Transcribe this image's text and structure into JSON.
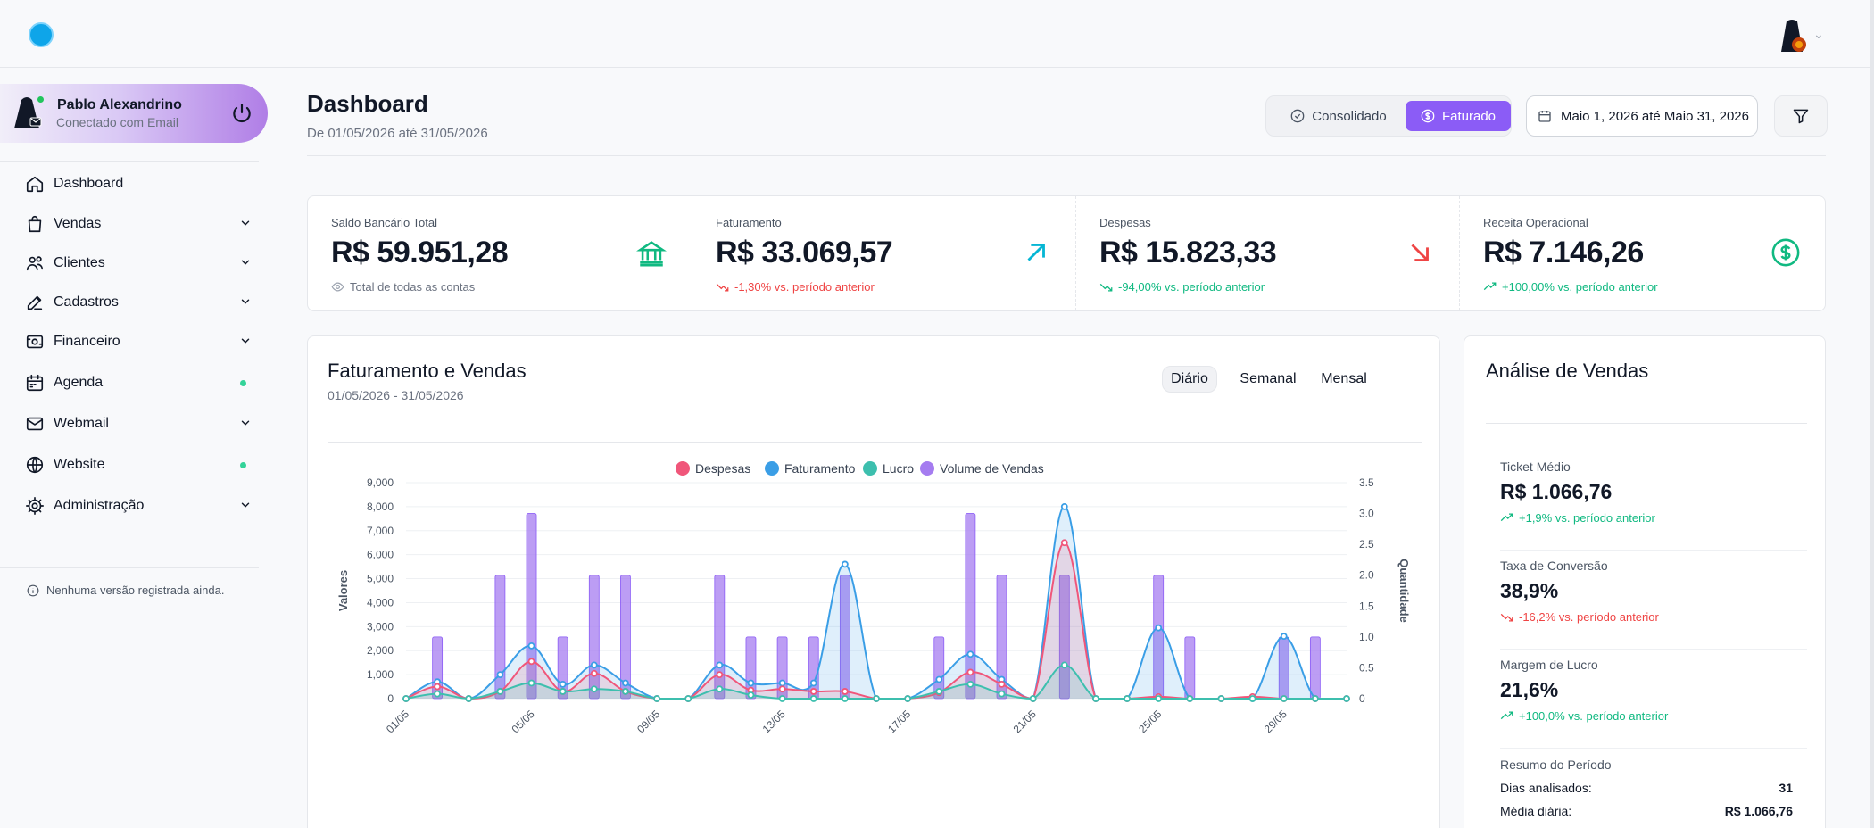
{
  "user": {
    "name": "Pablo Alexandrino",
    "status": "Conectado com Email"
  },
  "nav": [
    {
      "label": "Dashboard",
      "icon": "home-icon",
      "trail": "none"
    },
    {
      "label": "Vendas",
      "icon": "shopping-bag-icon",
      "trail": "chevron"
    },
    {
      "label": "Clientes",
      "icon": "users-icon",
      "trail": "chevron"
    },
    {
      "label": "Cadastros",
      "icon": "edit-icon",
      "trail": "chevron"
    },
    {
      "label": "Financeiro",
      "icon": "wallet-icon",
      "trail": "chevron"
    },
    {
      "label": "Agenda",
      "icon": "calendar-icon",
      "trail": "dot"
    },
    {
      "label": "Webmail",
      "icon": "mail-icon",
      "trail": "chevron"
    },
    {
      "label": "Website",
      "icon": "globe-icon",
      "trail": "dot"
    },
    {
      "label": "Administração",
      "icon": "settings-icon",
      "trail": "chevron"
    }
  ],
  "version_note": "Nenhuma versão registrada ainda.",
  "header": {
    "title": "Dashboard",
    "subtitle": "De 01/05/2026 até 31/05/2026",
    "toggle_consolidado": "Consolidado",
    "toggle_faturado": "Faturado",
    "date_range": "Maio 1, 2026 até Maio 31, 2026"
  },
  "kpis": [
    {
      "label": "Saldo Bancário Total",
      "value": "R$ 59.951,28",
      "note": "Total de todas as contas",
      "note_type": "neutral",
      "icon": "bank-icon",
      "icon_color": "#10b981"
    },
    {
      "label": "Faturamento",
      "value": "R$ 33.069,57",
      "note": "-1,30% vs. período anterior",
      "note_type": "down",
      "icon": "arrow-up-right-icon",
      "icon_color": "#06b6d4"
    },
    {
      "label": "Despesas",
      "value": "R$ 15.823,33",
      "note": "-94,00% vs. período anterior",
      "note_type": "up-good",
      "icon": "arrow-down-right-icon",
      "icon_color": "#ef4444"
    },
    {
      "label": "Receita Operacional",
      "value": "R$ 7.146,26",
      "note": "+100,00% vs. período anterior",
      "note_type": "up",
      "icon": "dollar-circle-icon",
      "icon_color": "#10b981"
    }
  ],
  "chart_card": {
    "title": "Faturamento e Vendas",
    "range": "01/05/2026 - 31/05/2026",
    "periods": [
      "Diário",
      "Semanal",
      "Mensal"
    ],
    "active_period": "Diário"
  },
  "chart_data": {
    "type": "line",
    "title": "",
    "ylabel": "Valores",
    "y2label": "Quantidade",
    "ylim": [
      0,
      9000
    ],
    "y2lim": [
      0,
      3.5
    ],
    "y_ticks": [
      "0",
      "1,000",
      "2,000",
      "3,000",
      "4,000",
      "5,000",
      "6,000",
      "7,000",
      "8,000",
      "9,000"
    ],
    "y2_ticks": [
      "0",
      "0.5",
      "1.0",
      "1.5",
      "2.0",
      "2.5",
      "3.0",
      "3.5"
    ],
    "x_ticks": [
      "01/05",
      "05/05",
      "09/05",
      "13/05",
      "17/05",
      "21/05",
      "25/05",
      "29/05"
    ],
    "legend_position": "top",
    "grid": true,
    "categories": [
      "01/05",
      "02/05",
      "03/05",
      "04/05",
      "05/05",
      "06/05",
      "07/05",
      "08/05",
      "09/05",
      "10/05",
      "11/05",
      "12/05",
      "13/05",
      "14/05",
      "15/05",
      "16/05",
      "17/05",
      "18/05",
      "19/05",
      "20/05",
      "21/05",
      "22/05",
      "23/05",
      "24/05",
      "25/05",
      "26/05",
      "27/05",
      "28/05",
      "29/05",
      "30/05",
      "31/05"
    ],
    "series": [
      {
        "name": "Despesas",
        "color": "#f0567a",
        "type": "area",
        "values": [
          0,
          500,
          0,
          300,
          1550,
          300,
          1050,
          300,
          0,
          0,
          1000,
          350,
          400,
          300,
          300,
          0,
          0,
          250,
          1100,
          600,
          0,
          6500,
          0,
          0,
          80,
          0,
          0,
          80,
          0,
          0,
          0
        ]
      },
      {
        "name": "Faturamento",
        "color": "#3a9ee6",
        "type": "area",
        "values": [
          0,
          700,
          0,
          1000,
          2200,
          600,
          1400,
          650,
          0,
          0,
          1400,
          650,
          650,
          650,
          5600,
          0,
          0,
          800,
          1850,
          800,
          0,
          8000,
          0,
          0,
          2950,
          0,
          0,
          0,
          2600,
          0,
          0
        ]
      },
      {
        "name": "Lucro",
        "color": "#3dbfae",
        "type": "area",
        "values": [
          0,
          200,
          0,
          300,
          650,
          300,
          400,
          300,
          0,
          0,
          400,
          150,
          0,
          0,
          0,
          0,
          0,
          300,
          600,
          200,
          0,
          1400,
          0,
          0,
          0,
          0,
          0,
          0,
          0,
          0,
          0
        ]
      },
      {
        "name": "Volume de Vendas",
        "color": "#a57cf0",
        "type": "bar",
        "axis": "right",
        "values": [
          0,
          1,
          0,
          2,
          3,
          1,
          2,
          2,
          0,
          0,
          2,
          1,
          1,
          1,
          2,
          0,
          0,
          1,
          3,
          2,
          0,
          2,
          0,
          0,
          2,
          1,
          0,
          0,
          1,
          1,
          0
        ]
      }
    ]
  },
  "analysis": {
    "title": "Análise de Vendas",
    "metrics": [
      {
        "label": "Ticket Médio",
        "value": "R$ 1.066,76",
        "note": "+1,9% vs. período anterior",
        "trend": "up"
      },
      {
        "label": "Taxa de Conversão",
        "value": "38,9%",
        "note": "-16,2% vs. período anterior",
        "trend": "down"
      },
      {
        "label": "Margem de Lucro",
        "value": "21,6%",
        "note": "+100,0% vs. período anterior",
        "trend": "up"
      }
    ],
    "summary_title": "Resumo do Período",
    "summary": [
      {
        "label": "Dias analisados:",
        "value": "31"
      },
      {
        "label": "Média diária:",
        "value": "R$ 1.066,76"
      }
    ]
  }
}
